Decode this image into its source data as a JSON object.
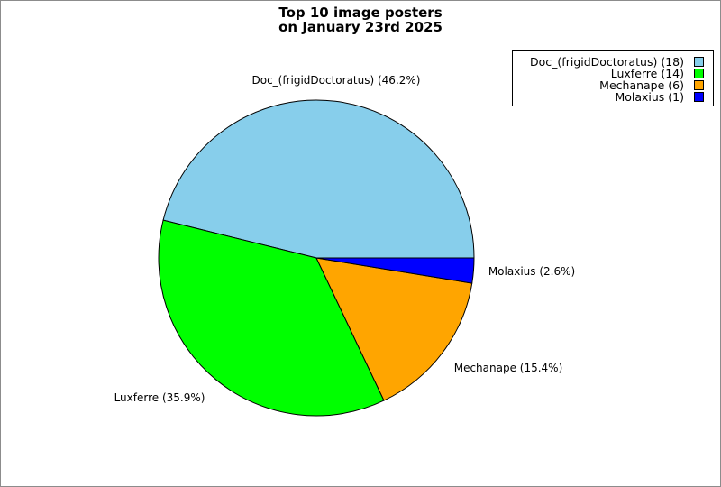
{
  "chart_data": {
    "type": "pie",
    "title": [
      "Top 10 image posters",
      "on January 23rd 2025"
    ],
    "slices": [
      {
        "name": "Doc_(frigidDoctoratus)",
        "value": 18,
        "percent": "46.2%",
        "color": "#87ceeb",
        "label": "Doc_(frigidDoctoratus) (46.2%)",
        "legend": "Doc_(frigidDoctoratus) (18)"
      },
      {
        "name": "Luxferre",
        "value": 14,
        "percent": "35.9%",
        "color": "#00ff00",
        "label": "Luxferre (35.9%)",
        "legend": "Luxferre (14)"
      },
      {
        "name": "Mechanape",
        "value": 6,
        "percent": "15.4%",
        "color": "#ffa500",
        "label": "Mechanape (15.4%)",
        "legend": "Mechanape (6)"
      },
      {
        "name": "Molaxius",
        "value": 1,
        "percent": "2.6%",
        "color": "#0000ff",
        "label": "Molaxius (2.6%)",
        "legend": "Molaxius (1)"
      }
    ],
    "legend_position": "top-right"
  }
}
